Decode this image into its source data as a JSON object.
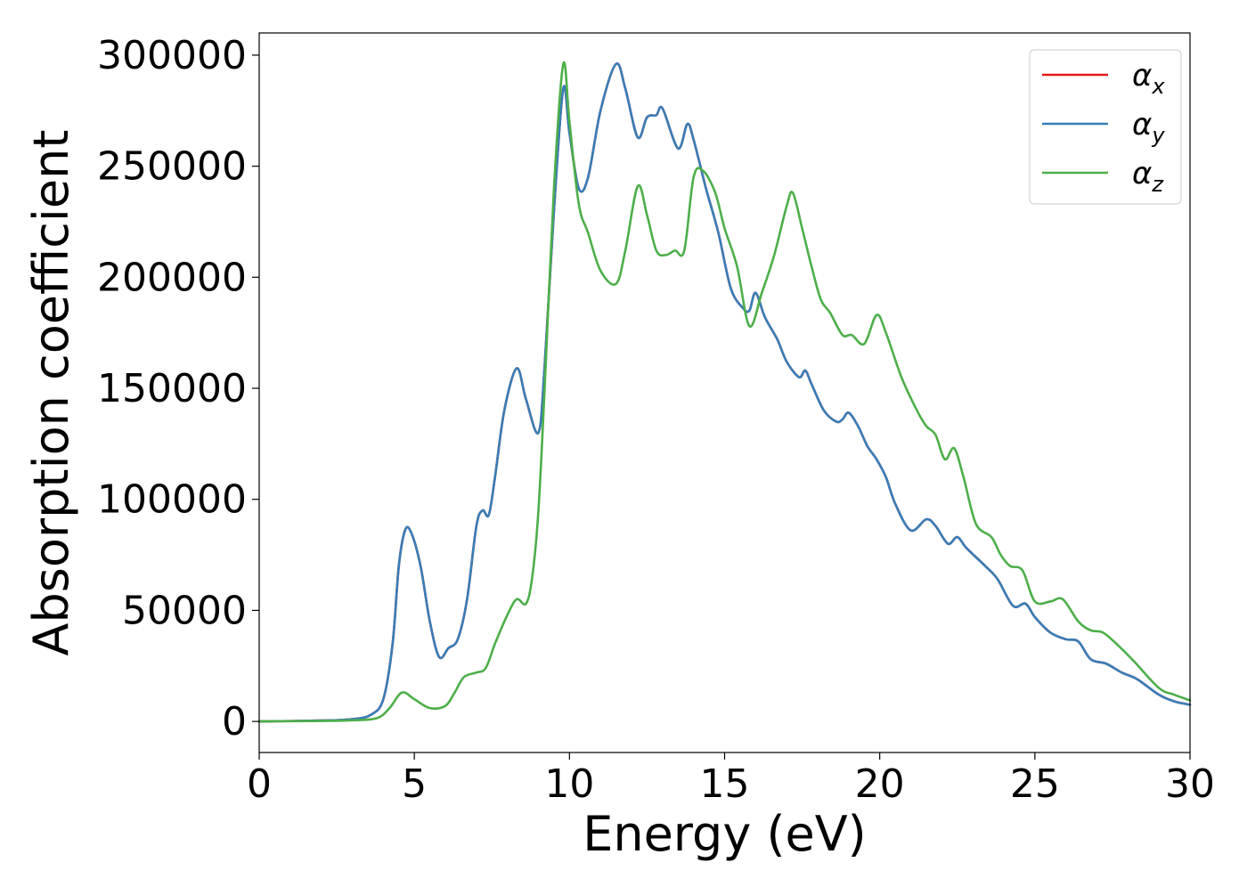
{
  "colors": {
    "alpha_x": "#e41a1c",
    "alpha_y": "#377eb8",
    "alpha_z": "#4daf4a",
    "axes": "#000000",
    "background": "#ffffff",
    "legend_border": "#cccccc"
  },
  "chart_data": {
    "type": "line",
    "title": "",
    "xlabel": "Energy (eV)",
    "ylabel": "Absorption coefficient",
    "xlim": [
      0,
      30
    ],
    "ylim": [
      -14000,
      310000
    ],
    "xticks": [
      0,
      5,
      10,
      15,
      20,
      25,
      30
    ],
    "xtick_labels": [
      "0",
      "5",
      "10",
      "15",
      "20",
      "25",
      "30"
    ],
    "yticks": [
      0,
      50000,
      100000,
      150000,
      200000,
      250000,
      300000
    ],
    "ytick_labels": [
      "0",
      "50000",
      "100000",
      "150000",
      "200000",
      "250000",
      "300000"
    ],
    "grid": false,
    "legend_position": "top-right",
    "series": [
      {
        "name": "α_x",
        "legend_symbol": "α",
        "legend_subscript": "x",
        "color": "#e41a1c",
        "points": [
          [
            0,
            0
          ],
          [
            2,
            400
          ],
          [
            3,
            1000
          ],
          [
            3.6,
            3000
          ],
          [
            4,
            10000
          ],
          [
            4.3,
            35000
          ],
          [
            4.5,
            70000
          ],
          [
            4.7,
            86000
          ],
          [
            4.9,
            85000
          ],
          [
            5.2,
            70000
          ],
          [
            5.5,
            45000
          ],
          [
            5.8,
            29000
          ],
          [
            6.1,
            33000
          ],
          [
            6.4,
            37000
          ],
          [
            6.7,
            55000
          ],
          [
            7,
            88000
          ],
          [
            7.2,
            95000
          ],
          [
            7.4,
            93000
          ],
          [
            7.6,
            110000
          ],
          [
            7.9,
            140000
          ],
          [
            8.3,
            159000
          ],
          [
            8.6,
            145000
          ],
          [
            9,
            130000
          ],
          [
            9.2,
            160000
          ],
          [
            9.5,
            230000
          ],
          [
            9.8,
            285000
          ],
          [
            10,
            265000
          ],
          [
            10.3,
            240000
          ],
          [
            10.6,
            245000
          ],
          [
            11,
            275000
          ],
          [
            11.5,
            296000
          ],
          [
            11.8,
            285000
          ],
          [
            12.2,
            263000
          ],
          [
            12.5,
            272000
          ],
          [
            12.8,
            273000
          ],
          [
            13,
            276000
          ],
          [
            13.5,
            258000
          ],
          [
            13.8,
            269000
          ],
          [
            14,
            262000
          ],
          [
            14.4,
            240000
          ],
          [
            14.8,
            220000
          ],
          [
            15.2,
            195000
          ],
          [
            15.6,
            186000
          ],
          [
            15.8,
            185000
          ],
          [
            16,
            193000
          ],
          [
            16.3,
            182000
          ],
          [
            16.7,
            172000
          ],
          [
            17,
            162000
          ],
          [
            17.4,
            155000
          ],
          [
            17.6,
            158000
          ],
          [
            17.8,
            152000
          ],
          [
            18.2,
            140000
          ],
          [
            18.6,
            135000
          ],
          [
            18.8,
            136000
          ],
          [
            19,
            139000
          ],
          [
            19.3,
            133000
          ],
          [
            19.6,
            124000
          ],
          [
            19.9,
            118000
          ],
          [
            20.2,
            110000
          ],
          [
            20.5,
            98000
          ],
          [
            21,
            86000
          ],
          [
            21.5,
            91000
          ],
          [
            21.8,
            88000
          ],
          [
            22.2,
            80000
          ],
          [
            22.5,
            83000
          ],
          [
            22.8,
            78000
          ],
          [
            23.4,
            70000
          ],
          [
            23.8,
            64000
          ],
          [
            24.3,
            52000
          ],
          [
            24.7,
            53000
          ],
          [
            25,
            47000
          ],
          [
            25.5,
            40000
          ],
          [
            26,
            37000
          ],
          [
            26.4,
            36000
          ],
          [
            26.8,
            28000
          ],
          [
            27.3,
            26000
          ],
          [
            27.8,
            22000
          ],
          [
            28.3,
            19000
          ],
          [
            29,
            12000
          ],
          [
            29.5,
            9000
          ],
          [
            30,
            7500
          ]
        ]
      },
      {
        "name": "α_y",
        "legend_symbol": "α",
        "legend_subscript": "y",
        "color": "#377eb8",
        "points": [
          [
            0,
            0
          ],
          [
            2,
            400
          ],
          [
            3,
            1000
          ],
          [
            3.6,
            3000
          ],
          [
            4,
            10000
          ],
          [
            4.3,
            35000
          ],
          [
            4.5,
            70000
          ],
          [
            4.7,
            86000
          ],
          [
            4.9,
            85000
          ],
          [
            5.2,
            70000
          ],
          [
            5.5,
            45000
          ],
          [
            5.8,
            29000
          ],
          [
            6.1,
            33000
          ],
          [
            6.4,
            37000
          ],
          [
            6.7,
            55000
          ],
          [
            7,
            88000
          ],
          [
            7.2,
            95000
          ],
          [
            7.4,
            93000
          ],
          [
            7.6,
            110000
          ],
          [
            7.9,
            140000
          ],
          [
            8.3,
            159000
          ],
          [
            8.6,
            145000
          ],
          [
            9,
            130000
          ],
          [
            9.2,
            160000
          ],
          [
            9.5,
            230000
          ],
          [
            9.8,
            285000
          ],
          [
            10,
            265000
          ],
          [
            10.3,
            240000
          ],
          [
            10.6,
            245000
          ],
          [
            11,
            275000
          ],
          [
            11.5,
            296000
          ],
          [
            11.8,
            285000
          ],
          [
            12.2,
            263000
          ],
          [
            12.5,
            272000
          ],
          [
            12.8,
            273000
          ],
          [
            13,
            276000
          ],
          [
            13.5,
            258000
          ],
          [
            13.8,
            269000
          ],
          [
            14,
            262000
          ],
          [
            14.4,
            240000
          ],
          [
            14.8,
            220000
          ],
          [
            15.2,
            195000
          ],
          [
            15.6,
            186000
          ],
          [
            15.8,
            185000
          ],
          [
            16,
            193000
          ],
          [
            16.3,
            182000
          ],
          [
            16.7,
            172000
          ],
          [
            17,
            162000
          ],
          [
            17.4,
            155000
          ],
          [
            17.6,
            158000
          ],
          [
            17.8,
            152000
          ],
          [
            18.2,
            140000
          ],
          [
            18.6,
            135000
          ],
          [
            18.8,
            136000
          ],
          [
            19,
            139000
          ],
          [
            19.3,
            133000
          ],
          [
            19.6,
            124000
          ],
          [
            19.9,
            118000
          ],
          [
            20.2,
            110000
          ],
          [
            20.5,
            98000
          ],
          [
            21,
            86000
          ],
          [
            21.5,
            91000
          ],
          [
            21.8,
            88000
          ],
          [
            22.2,
            80000
          ],
          [
            22.5,
            83000
          ],
          [
            22.8,
            78000
          ],
          [
            23.4,
            70000
          ],
          [
            23.8,
            64000
          ],
          [
            24.3,
            52000
          ],
          [
            24.7,
            53000
          ],
          [
            25,
            47000
          ],
          [
            25.5,
            40000
          ],
          [
            26,
            37000
          ],
          [
            26.4,
            36000
          ],
          [
            26.8,
            28000
          ],
          [
            27.3,
            26000
          ],
          [
            27.8,
            22000
          ],
          [
            28.3,
            19000
          ],
          [
            29,
            12000
          ],
          [
            29.5,
            9000
          ],
          [
            30,
            7500
          ]
        ]
      },
      {
        "name": "α_z",
        "legend_symbol": "α",
        "legend_subscript": "z",
        "color": "#4daf4a",
        "points": [
          [
            0,
            0
          ],
          [
            2,
            200
          ],
          [
            3,
            500
          ],
          [
            3.8,
            1500
          ],
          [
            4.2,
            6000
          ],
          [
            4.6,
            13000
          ],
          [
            5,
            10000
          ],
          [
            5.5,
            6000
          ],
          [
            6,
            7000
          ],
          [
            6.3,
            13000
          ],
          [
            6.6,
            20000
          ],
          [
            7,
            22000
          ],
          [
            7.3,
            24000
          ],
          [
            7.6,
            35000
          ],
          [
            8,
            48000
          ],
          [
            8.3,
            55000
          ],
          [
            8.6,
            53000
          ],
          [
            8.8,
            65000
          ],
          [
            9,
            95000
          ],
          [
            9.2,
            150000
          ],
          [
            9.5,
            240000
          ],
          [
            9.8,
            296000
          ],
          [
            10,
            270000
          ],
          [
            10.3,
            233000
          ],
          [
            10.6,
            220000
          ],
          [
            11,
            203000
          ],
          [
            11.5,
            197000
          ],
          [
            11.8,
            212000
          ],
          [
            12.2,
            241000
          ],
          [
            12.5,
            228000
          ],
          [
            12.8,
            212000
          ],
          [
            13.1,
            210000
          ],
          [
            13.4,
            212000
          ],
          [
            13.7,
            212000
          ],
          [
            14,
            245000
          ],
          [
            14.3,
            248000
          ],
          [
            14.7,
            238000
          ],
          [
            15,
            222000
          ],
          [
            15.4,
            205000
          ],
          [
            15.8,
            178000
          ],
          [
            16.2,
            193000
          ],
          [
            16.6,
            210000
          ],
          [
            17,
            232000
          ],
          [
            17.2,
            238000
          ],
          [
            17.5,
            222000
          ],
          [
            17.8,
            205000
          ],
          [
            18.1,
            190000
          ],
          [
            18.4,
            184000
          ],
          [
            18.8,
            174000
          ],
          [
            19.1,
            174000
          ],
          [
            19.5,
            170000
          ],
          [
            19.9,
            183000
          ],
          [
            20.2,
            175000
          ],
          [
            20.7,
            155000
          ],
          [
            21.2,
            140000
          ],
          [
            21.5,
            133000
          ],
          [
            21.8,
            129000
          ],
          [
            22.1,
            118000
          ],
          [
            22.4,
            123000
          ],
          [
            22.7,
            110000
          ],
          [
            23.1,
            89000
          ],
          [
            23.6,
            83000
          ],
          [
            23.9,
            75000
          ],
          [
            24.2,
            70000
          ],
          [
            24.6,
            68000
          ],
          [
            25,
            54000
          ],
          [
            25.5,
            54000
          ],
          [
            25.9,
            55000
          ],
          [
            26.4,
            45000
          ],
          [
            26.8,
            41000
          ],
          [
            27.2,
            40000
          ],
          [
            27.7,
            34000
          ],
          [
            28.2,
            27000
          ],
          [
            29,
            15000
          ],
          [
            29.5,
            12000
          ],
          [
            30,
            9500
          ]
        ]
      }
    ]
  }
}
